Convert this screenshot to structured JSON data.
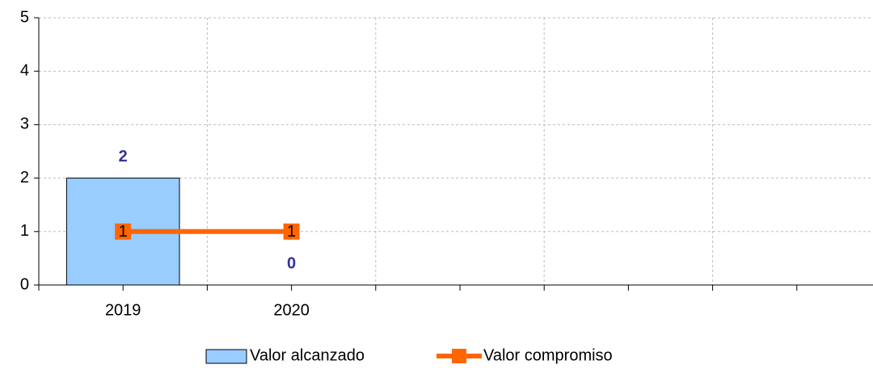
{
  "chart_data": {
    "type": "bar-line",
    "categories": [
      "2019",
      "2020",
      null,
      null,
      null
    ],
    "series": [
      {
        "name": "Valor alcanzado",
        "type": "bar",
        "color": "#99ccff",
        "values": [
          2,
          0,
          null,
          null,
          null
        ]
      },
      {
        "name": "Valor compromiso",
        "type": "line",
        "color": "#ff6600",
        "values": [
          1,
          1,
          null,
          null,
          null
        ]
      }
    ],
    "ylim": [
      0,
      5
    ],
    "yticks": [
      0,
      1,
      2,
      3,
      4,
      5
    ],
    "grid": true,
    "legend": "bottom"
  }
}
